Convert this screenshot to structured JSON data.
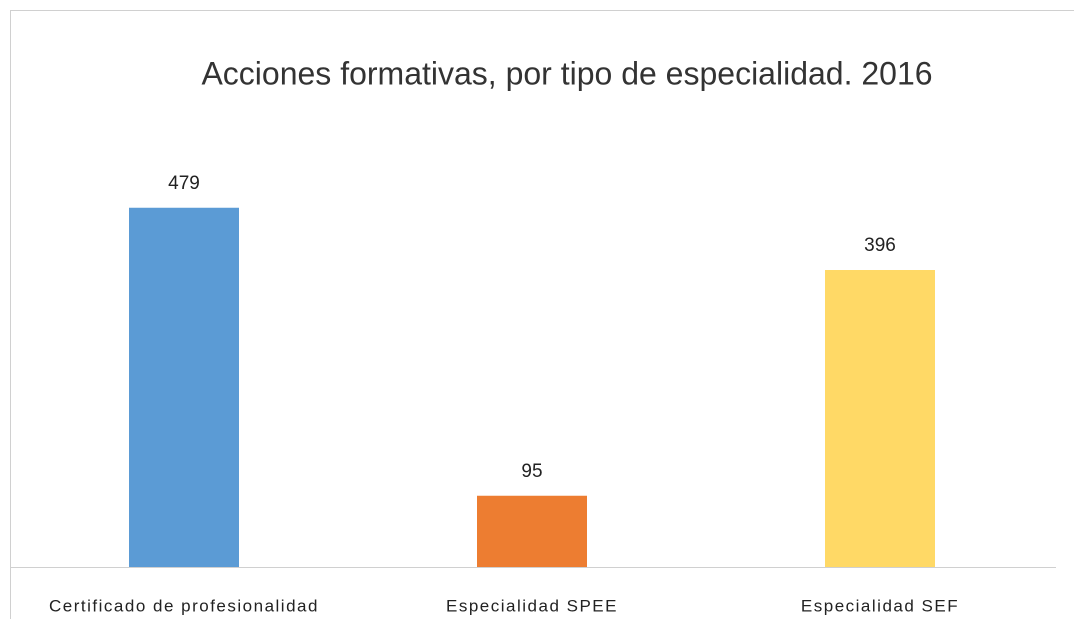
{
  "chart_data": {
    "type": "bar",
    "title": "Acciones formativas, por tipo de especialidad. 2016",
    "categories": [
      "Certificado de profesionalidad",
      "Especialidad SPEE",
      "Especialidad SEF"
    ],
    "values": [
      479,
      95,
      396
    ],
    "colors": [
      "#5b9bd5",
      "#ed7d31",
      "#ffd966"
    ]
  }
}
